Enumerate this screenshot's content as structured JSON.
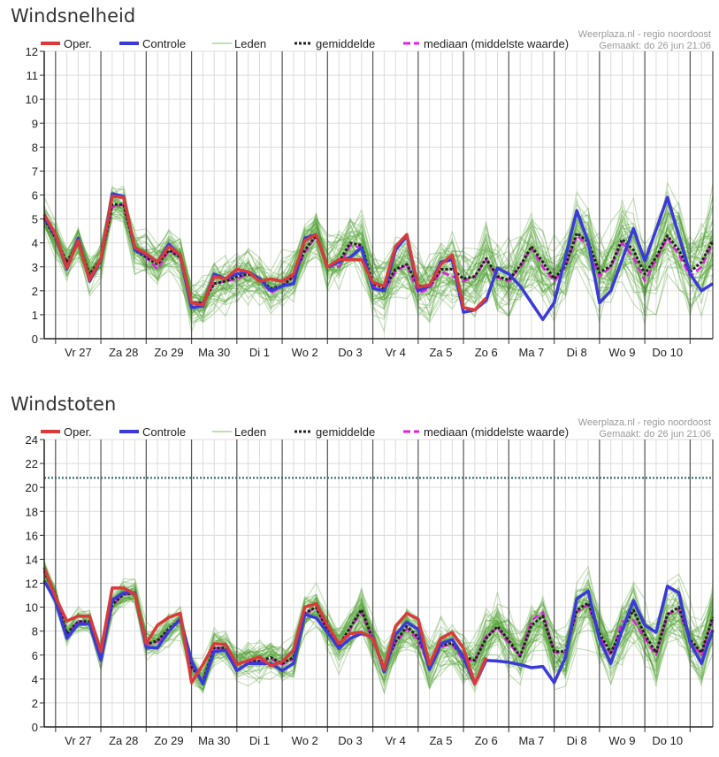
{
  "legend": {
    "oper": "Oper.",
    "controle": "Controle",
    "leden": "Leden",
    "gemiddelde": "gemiddelde",
    "mediaan": "mediaan (middelste waarde)"
  },
  "source": "Weerplaza.nl - regio noordoost",
  "created": "Gemaakt: do 26 jun 21:06",
  "colors": {
    "oper": "#d93a3a",
    "controle": "#3a3ad9",
    "leden": "#4a9e2a",
    "gemiddelde": "#222222",
    "mediaan": "#e020e0",
    "threshold": "#2a5e5e"
  },
  "chart_data": [
    {
      "type": "line",
      "title": "Windsnelheid",
      "xlabel": "",
      "ylabel": "",
      "ylim": [
        0,
        12
      ],
      "ytick_step": 1,
      "step_hours": 6,
      "day_labels": [
        "Vr 27",
        "Za 28",
        "Zo 29",
        "Ma 30",
        "Di 1",
        "Wo 2",
        "Do 3",
        "Vr 4",
        "Za 5",
        "Zo 6",
        "Ma 7",
        "Di 8",
        "Wo 9",
        "Do 10"
      ],
      "members_count": 50,
      "member_spread": [
        0.8,
        2.0
      ],
      "series": [
        {
          "name": "Oper.",
          "key": "oper",
          "values": [
            5.2,
            4.35,
            2.95,
            4.1,
            2.45,
            3.35,
            5.95,
            5.9,
            3.8,
            3.55,
            3.2,
            3.85,
            3.5,
            1.5,
            1.4,
            2.6,
            2.5,
            2.9,
            2.8,
            2.4,
            2.5,
            2.4,
            2.7,
            4.1,
            4.35,
            3.0,
            3.3,
            3.3,
            3.3,
            2.35,
            2.2,
            3.85,
            4.35,
            2.15,
            2.25,
            3.1,
            3.5,
            1.3,
            1.2,
            1.7,
            null,
            null,
            null,
            null,
            null,
            null,
            null,
            null,
            null,
            null,
            null,
            null,
            null,
            null,
            null,
            null,
            null,
            null,
            null,
            null
          ]
        },
        {
          "name": "Controle",
          "key": "controle",
          "values": [
            5.1,
            4.3,
            2.9,
            4.2,
            2.4,
            3.3,
            6.05,
            5.95,
            3.7,
            3.5,
            3.2,
            3.95,
            3.45,
            1.3,
            1.35,
            2.7,
            2.5,
            2.7,
            2.8,
            2.5,
            2.0,
            2.2,
            2.3,
            4.2,
            4.35,
            3.0,
            3.2,
            3.4,
            3.8,
            2.1,
            2.0,
            3.7,
            4.3,
            2.0,
            2.2,
            3.2,
            3.3,
            1.1,
            1.2,
            1.6,
            2.95,
            2.7,
            2.2,
            1.5,
            0.8,
            1.5,
            3.4,
            5.35,
            4.05,
            1.5,
            2.0,
            3.3,
            4.6,
            3.25,
            4.55,
            5.9,
            4.3,
            2.7,
            2.0,
            2.3
          ]
        },
        {
          "name": "gemiddelde",
          "key": "gemiddelde",
          "values": [
            5.0,
            4.2,
            3.2,
            4.0,
            2.7,
            3.3,
            5.6,
            5.6,
            3.7,
            3.4,
            3.1,
            3.7,
            3.4,
            1.5,
            1.5,
            2.3,
            2.4,
            2.6,
            2.7,
            2.5,
            2.1,
            2.2,
            2.6,
            3.7,
            4.3,
            3.0,
            3.2,
            4.0,
            3.9,
            2.3,
            2.1,
            2.9,
            3.1,
            2.2,
            2.2,
            2.9,
            2.9,
            2.5,
            2.6,
            3.35,
            2.6,
            2.45,
            3.05,
            3.85,
            3.2,
            2.5,
            3.05,
            4.4,
            4.05,
            2.75,
            3.05,
            4.15,
            3.7,
            2.7,
            3.4,
            4.3,
            3.7,
            2.8,
            3.2,
            4.1
          ]
        },
        {
          "name": "mediaan (middelste waarde)",
          "key": "mediaan",
          "values": [
            5.0,
            4.2,
            3.1,
            4.0,
            2.6,
            3.3,
            5.5,
            5.6,
            3.7,
            3.4,
            2.9,
            3.7,
            3.4,
            1.5,
            1.5,
            2.3,
            2.4,
            2.5,
            2.7,
            2.5,
            1.9,
            2.2,
            2.6,
            3.6,
            4.3,
            3.0,
            3.0,
            3.9,
            3.8,
            2.2,
            2.0,
            2.8,
            3.1,
            1.9,
            2.1,
            2.8,
            2.6,
            2.4,
            2.6,
            3.3,
            2.55,
            2.4,
            3.0,
            3.8,
            3.0,
            2.4,
            3.0,
            4.3,
            3.9,
            2.6,
            3.0,
            4.0,
            3.4,
            2.4,
            3.3,
            4.2,
            3.5,
            2.6,
            3.0,
            4.0
          ]
        }
      ]
    },
    {
      "type": "line",
      "title": "Windstoten",
      "xlabel": "",
      "ylabel": "",
      "ylim": [
        0,
        24
      ],
      "ytick_step": 2,
      "step_hours": 6,
      "threshold": 20.8,
      "day_labels": [
        "Vr 27",
        "Za 28",
        "Zo 29",
        "Ma 30",
        "Di 1",
        "Wo 2",
        "Do 3",
        "Vr 4",
        "Za 5",
        "Zo 6",
        "Ma 7",
        "Di 8",
        "Wo 9",
        "Do 10"
      ],
      "members_count": 50,
      "member_spread": [
        0.9,
        3.2
      ],
      "series": [
        {
          "name": "Oper.",
          "key": "oper",
          "values": [
            13.3,
            10.85,
            8.85,
            9.25,
            9.25,
            6.3,
            11.6,
            11.6,
            11.1,
            6.95,
            8.5,
            9.15,
            9.5,
            3.7,
            5.2,
            6.95,
            6.9,
            5.2,
            5.55,
            5.85,
            5.1,
            5.45,
            6.4,
            10.0,
            10.3,
            8.5,
            6.95,
            7.8,
            7.9,
            7.4,
            4.8,
            8.4,
            9.5,
            9.0,
            5.2,
            7.4,
            7.9,
            6.55,
            3.6,
            5.8,
            null,
            null,
            null,
            null,
            null,
            null,
            null,
            null,
            null,
            null,
            null,
            null,
            null,
            null,
            null,
            null,
            null,
            null,
            null,
            null
          ]
        },
        {
          "name": "Controle",
          "key": "controle",
          "values": [
            12.2,
            10.5,
            7.4,
            8.6,
            8.6,
            5.55,
            10.6,
            11.2,
            11.2,
            6.65,
            6.6,
            8.0,
            9.0,
            5.5,
            3.6,
            6.3,
            6.4,
            4.7,
            5.3,
            5.3,
            5.3,
            4.7,
            5.3,
            9.4,
            9.1,
            7.9,
            6.55,
            7.4,
            7.8,
            7.5,
            4.6,
            7.7,
            8.75,
            8.15,
            4.8,
            6.95,
            7.3,
            5.8,
            3.6,
            5.55,
            5.5,
            5.4,
            5.2,
            4.95,
            5.05,
            3.7,
            5.8,
            10.7,
            11.35,
            7.3,
            5.3,
            8.05,
            10.55,
            8.5,
            7.9,
            11.75,
            11.2,
            7.0,
            5.3,
            8.1
          ]
        },
        {
          "name": "gemiddelde",
          "key": "gemiddelde",
          "values": [
            13.0,
            11.0,
            7.8,
            8.8,
            8.8,
            5.9,
            10.2,
            11.1,
            11.1,
            6.9,
            7.2,
            8.2,
            9.0,
            5.0,
            3.8,
            6.6,
            6.6,
            5.3,
            5.5,
            5.5,
            5.8,
            5.3,
            5.8,
            9.5,
            10.0,
            8.1,
            6.8,
            8.3,
            9.8,
            7.3,
            5.0,
            7.1,
            8.4,
            7.5,
            5.3,
            6.8,
            7.0,
            5.9,
            5.55,
            7.4,
            8.4,
            7.2,
            5.9,
            8.5,
            9.25,
            6.3,
            6.3,
            9.75,
            10.35,
            7.8,
            6.2,
            8.2,
            9.75,
            7.7,
            6.2,
            9.4,
            10.0,
            7.3,
            6.2,
            9.15
          ]
        },
        {
          "name": "mediaan (middelste waarde)",
          "key": "mediaan",
          "values": [
            13.0,
            11.0,
            7.7,
            8.8,
            8.8,
            5.8,
            10.1,
            11.1,
            11.1,
            6.9,
            7.1,
            8.1,
            9.0,
            5.0,
            3.8,
            6.6,
            6.6,
            5.3,
            5.5,
            5.5,
            5.7,
            5.2,
            5.7,
            9.4,
            10.0,
            8.0,
            6.7,
            8.2,
            9.6,
            7.2,
            4.9,
            7.0,
            8.2,
            7.3,
            4.9,
            6.7,
            6.9,
            5.6,
            5.5,
            7.6,
            8.3,
            7.0,
            5.9,
            8.9,
            9.6,
            6.2,
            6.2,
            9.6,
            10.2,
            7.6,
            6.0,
            8.8,
            8.9,
            7.4,
            6.0,
            9.4,
            9.8,
            7.2,
            6.0,
            9.0
          ]
        }
      ]
    }
  ]
}
